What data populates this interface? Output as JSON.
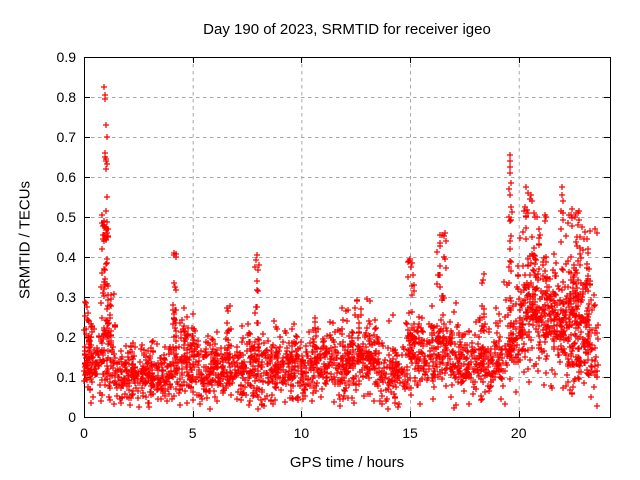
{
  "page": {
    "background": "#ffffff"
  },
  "chart_data": {
    "type": "scatter",
    "title": "Day 190 of 2023, SRMTID for receiver igeo",
    "xlabel": "GPS time / hours",
    "ylabel": "SRMTID / TECUs",
    "xlim": [
      0,
      24.2
    ],
    "ylim": [
      0,
      0.9
    ],
    "xticks": [
      0,
      5,
      10,
      15,
      20
    ],
    "xtick_labels": [
      "0",
      "5",
      "10",
      "15",
      "20"
    ],
    "yticks": [
      0,
      0.1,
      0.2,
      0.3,
      0.4,
      0.5,
      0.6,
      0.7,
      0.8,
      0.9
    ],
    "ytick_labels": [
      "0",
      "0.1",
      "0.2",
      "0.3",
      "0.4",
      "0.5",
      "0.6",
      "0.7",
      "0.8",
      "0.9"
    ],
    "grid": {
      "visible": true,
      "style": "dashed"
    },
    "legend_position": "none",
    "marker": {
      "shape": "plus",
      "size": 7,
      "color": "#ff0000"
    },
    "colors": {
      "points": "#ff0000",
      "grid": "#a8a8a8",
      "frame": "#000000",
      "text": "#000000",
      "background": "#ffffff"
    },
    "series_name": "SRMTID",
    "seed": 1907,
    "baseline_segments": [
      [
        0.0,
        0.6,
        0.15,
        0.05,
        70
      ],
      [
        0.6,
        1.45,
        0.16,
        0.055,
        80
      ],
      [
        1.45,
        4.0,
        0.105,
        0.035,
        260
      ],
      [
        4.0,
        5.3,
        0.13,
        0.045,
        120
      ],
      [
        5.3,
        7.5,
        0.115,
        0.04,
        200
      ],
      [
        7.5,
        8.3,
        0.13,
        0.05,
        80
      ],
      [
        8.3,
        10.3,
        0.12,
        0.04,
        190
      ],
      [
        10.3,
        12.3,
        0.13,
        0.042,
        190
      ],
      [
        12.3,
        13.6,
        0.145,
        0.045,
        130
      ],
      [
        13.6,
        14.8,
        0.11,
        0.042,
        95
      ],
      [
        14.8,
        16.2,
        0.15,
        0.05,
        130
      ],
      [
        16.2,
        17.2,
        0.15,
        0.05,
        95
      ],
      [
        17.2,
        19.3,
        0.135,
        0.045,
        195
      ],
      [
        19.3,
        20.3,
        0.19,
        0.06,
        75
      ],
      [
        20.3,
        21.4,
        0.26,
        0.09,
        120
      ],
      [
        21.4,
        22.2,
        0.24,
        0.075,
        85
      ],
      [
        22.2,
        23.3,
        0.24,
        0.09,
        150
      ],
      [
        23.3,
        23.65,
        0.18,
        0.07,
        25
      ]
    ],
    "spike_clusters": [
      [
        0.12,
        0.1,
        18,
        0.08,
        0.3
      ],
      [
        0.45,
        0.1,
        10,
        0.1,
        0.24
      ],
      [
        0.95,
        0.17,
        48,
        0.2,
        0.52
      ],
      [
        1.2,
        0.08,
        14,
        0.18,
        0.38
      ],
      [
        2.3,
        0.15,
        10,
        0.1,
        0.22
      ],
      [
        3.0,
        0.15,
        10,
        0.1,
        0.22
      ],
      [
        4.15,
        0.1,
        22,
        0.15,
        0.41
      ],
      [
        4.65,
        0.12,
        16,
        0.14,
        0.31
      ],
      [
        5.05,
        0.1,
        12,
        0.13,
        0.28
      ],
      [
        6.05,
        0.12,
        12,
        0.11,
        0.25
      ],
      [
        6.65,
        0.15,
        16,
        0.13,
        0.3
      ],
      [
        7.3,
        0.1,
        10,
        0.11,
        0.24
      ],
      [
        7.95,
        0.12,
        20,
        0.14,
        0.41
      ],
      [
        8.8,
        0.15,
        10,
        0.11,
        0.24
      ],
      [
        9.7,
        0.15,
        10,
        0.12,
        0.26
      ],
      [
        10.6,
        0.15,
        10,
        0.12,
        0.26
      ],
      [
        11.3,
        0.2,
        10,
        0.12,
        0.25
      ],
      [
        12.0,
        0.15,
        12,
        0.14,
        0.29
      ],
      [
        12.6,
        0.15,
        14,
        0.14,
        0.3
      ],
      [
        13.1,
        0.15,
        12,
        0.14,
        0.3
      ],
      [
        15.05,
        0.15,
        26,
        0.15,
        0.4
      ],
      [
        15.6,
        0.12,
        8,
        0.12,
        0.24
      ],
      [
        16.45,
        0.22,
        26,
        0.18,
        0.46
      ],
      [
        17.6,
        0.15,
        8,
        0.1,
        0.22
      ],
      [
        18.3,
        0.12,
        12,
        0.15,
        0.38
      ],
      [
        19.0,
        0.15,
        10,
        0.1,
        0.28
      ],
      [
        19.6,
        0.08,
        26,
        0.15,
        0.53
      ],
      [
        20.1,
        0.15,
        16,
        0.2,
        0.45
      ],
      [
        20.5,
        0.3,
        45,
        0.25,
        0.52
      ],
      [
        21.1,
        0.2,
        25,
        0.2,
        0.48
      ],
      [
        21.55,
        0.2,
        20,
        0.2,
        0.42
      ],
      [
        22.0,
        0.1,
        18,
        0.2,
        0.5
      ],
      [
        22.55,
        0.3,
        50,
        0.12,
        0.52
      ],
      [
        23.05,
        0.2,
        28,
        0.1,
        0.45
      ],
      [
        23.45,
        0.18,
        8,
        0.1,
        0.35
      ]
    ],
    "outlier_points": [
      [
        0.9,
        0.825
      ],
      [
        0.95,
        0.805
      ],
      [
        0.97,
        0.795
      ],
      [
        1.0,
        0.73
      ],
      [
        1.05,
        0.7
      ],
      [
        0.95,
        0.66
      ],
      [
        0.98,
        0.65
      ],
      [
        1.0,
        0.645
      ],
      [
        1.02,
        0.64
      ],
      [
        1.05,
        0.632
      ],
      [
        1.0,
        0.62
      ],
      [
        1.08,
        0.55
      ],
      [
        0.85,
        0.505
      ],
      [
        0.9,
        0.49
      ],
      [
        0.93,
        0.48
      ],
      [
        0.97,
        0.475
      ],
      [
        1.0,
        0.468
      ],
      [
        1.04,
        0.46
      ],
      [
        1.07,
        0.47
      ],
      [
        0.88,
        0.455
      ],
      [
        1.1,
        0.45
      ],
      [
        0.92,
        0.44
      ],
      [
        4.15,
        0.41
      ],
      [
        7.95,
        0.405
      ],
      [
        15.0,
        0.395
      ],
      [
        15.05,
        0.375
      ],
      [
        16.4,
        0.455
      ],
      [
        16.6,
        0.46
      ],
      [
        16.65,
        0.44
      ],
      [
        19.6,
        0.655
      ],
      [
        19.62,
        0.64
      ],
      [
        19.58,
        0.625
      ],
      [
        19.6,
        0.61
      ],
      [
        19.63,
        0.585
      ],
      [
        19.57,
        0.57
      ],
      [
        19.6,
        0.555
      ],
      [
        19.65,
        0.525
      ],
      [
        19.55,
        0.5
      ],
      [
        20.35,
        0.575
      ],
      [
        20.45,
        0.56
      ],
      [
        20.5,
        0.545
      ],
      [
        20.55,
        0.555
      ],
      [
        20.6,
        0.54
      ],
      [
        20.3,
        0.525
      ],
      [
        20.7,
        0.51
      ],
      [
        20.75,
        0.5
      ],
      [
        20.85,
        0.5
      ],
      [
        21.2,
        0.505
      ],
      [
        21.25,
        0.5
      ],
      [
        21.97,
        0.575
      ],
      [
        22.0,
        0.555
      ],
      [
        22.02,
        0.54
      ],
      [
        21.95,
        0.515
      ],
      [
        22.05,
        0.51
      ],
      [
        22.45,
        0.52
      ],
      [
        22.6,
        0.5
      ],
      [
        22.75,
        0.48
      ],
      [
        22.9,
        0.475
      ],
      [
        23.05,
        0.463
      ],
      [
        23.3,
        0.465
      ],
      [
        23.5,
        0.47
      ],
      [
        23.6,
        0.46
      ],
      [
        0.3,
        0.035
      ],
      [
        0.8,
        0.04
      ],
      [
        2.1,
        0.03
      ],
      [
        3.0,
        0.025
      ],
      [
        4.4,
        0.03
      ],
      [
        5.8,
        0.02
      ],
      [
        6.1,
        0.04
      ],
      [
        8.0,
        0.02
      ],
      [
        8.2,
        0.03
      ],
      [
        12.4,
        0.035
      ],
      [
        13.9,
        0.04
      ],
      [
        14.0,
        0.02
      ],
      [
        14.3,
        0.05
      ],
      [
        16.9,
        0.05
      ]
    ]
  }
}
